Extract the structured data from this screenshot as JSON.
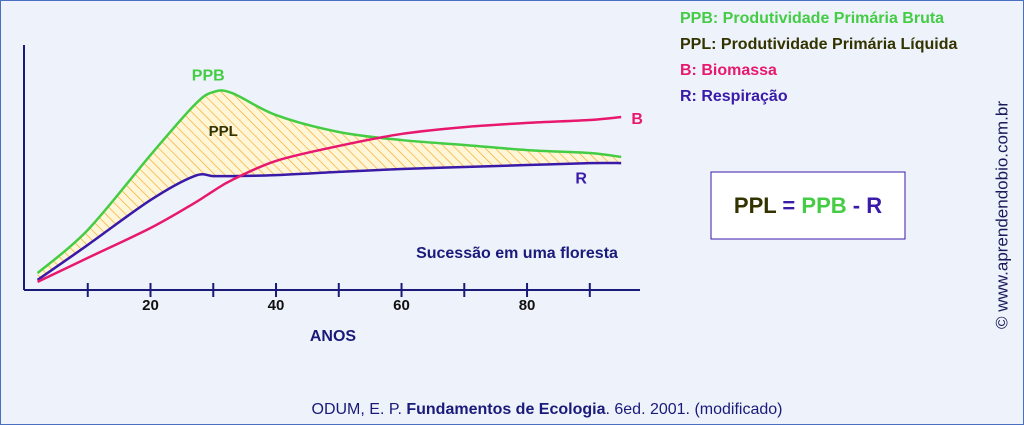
{
  "chart_data": {
    "type": "line",
    "x": [
      2,
      10,
      20,
      27,
      30,
      33,
      40,
      50,
      60,
      70,
      80,
      90,
      95
    ],
    "series": [
      {
        "name": "PPB",
        "color": "#44cc44",
        "values": [
          6.9,
          24.5,
          55.1,
          75.5,
          80.8,
          80.4,
          71.4,
          64.5,
          61.2,
          59.2,
          57.1,
          55.9,
          54.3
        ]
      },
      {
        "name": "R",
        "color": "#3a1aa8",
        "values": [
          4.1,
          18.4,
          36.7,
          46.5,
          46.5,
          46.5,
          46.9,
          48.2,
          49.4,
          50.2,
          51.0,
          51.8,
          51.8
        ]
      },
      {
        "name": "B",
        "color": "#e8186e",
        "values": [
          3.3,
          13.1,
          25.3,
          35.5,
          40.4,
          44.9,
          52.7,
          58.8,
          63.7,
          66.5,
          68.2,
          69.4,
          70.6
        ]
      }
    ],
    "area_label": "PPL",
    "area_color": "#f5a623",
    "xlim": [
      0,
      98
    ],
    "xticks": [
      20,
      40,
      60,
      80
    ],
    "xminor": [
      10,
      30,
      50,
      70,
      90
    ],
    "ylim": [
      0,
      100
    ],
    "xlabel": "ANOS",
    "annotation": "Sucessão em uma floresta",
    "legend": [
      {
        "text": "PPB: Produtividade Primária Bruta",
        "color": "#44cc44"
      },
      {
        "text": "PPL: Produtividade Primária Líquida",
        "color": "#333300"
      },
      {
        "text": "B: Biomassa",
        "color": "#e8186e"
      },
      {
        "text": "R: Respiração",
        "color": "#3a1aa8"
      }
    ],
    "formula": [
      {
        "text": "PPL",
        "color": "#333300"
      },
      {
        "text": "=",
        "color": "#3a1aa8"
      },
      {
        "text": "PPB",
        "color": "#44cc44"
      },
      {
        "text": "-",
        "color": "#3a1aa8"
      },
      {
        "text": "R",
        "color": "#3a1aa8"
      }
    ],
    "credit": "© www.aprendendobio.com.br",
    "citation": {
      "author": "ODUM, E. P.",
      "title": "Fundamentos de Ecologia",
      "rest": ". 6ed. 2001. (modificado)"
    }
  }
}
